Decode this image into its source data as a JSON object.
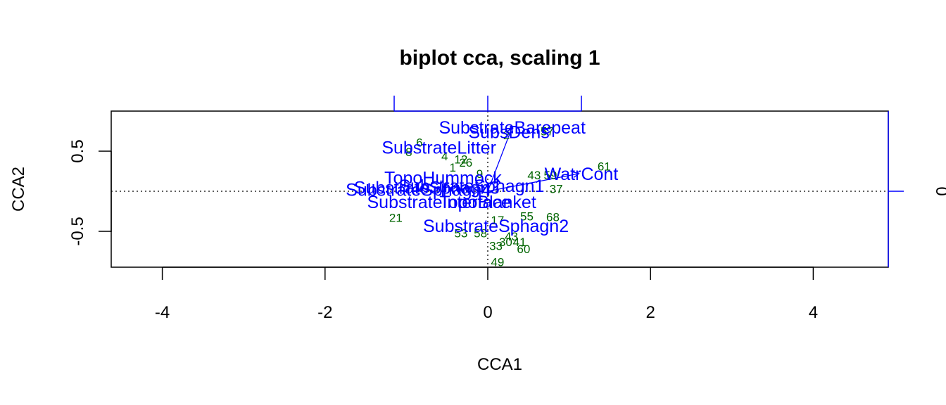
{
  "chart_data": {
    "type": "scatter",
    "title": "biplot cca, scaling 1",
    "xlabel": "CCA1",
    "ylabel": "CCA2",
    "xlim": [
      -4.6,
      4.9
    ],
    "ylim": [
      -0.93,
      1.0
    ],
    "xticks": [
      -4,
      -2,
      0,
      2,
      4
    ],
    "yticks": [
      -0.5,
      0.5
    ],
    "secondary_axis": {
      "tick_label": "0",
      "color": "#0000ff"
    },
    "colors": {
      "sites": "#006400",
      "variables": "#0000ff",
      "axes": "#000000"
    },
    "sites": [
      {
        "label": "57",
        "x": 0.73,
        "y": 0.75
      },
      {
        "label": "2",
        "x": 0.23,
        "y": 0.7
      },
      {
        "label": "8",
        "x": -0.97,
        "y": 0.49
      },
      {
        "label": "6",
        "x": -0.84,
        "y": 0.61
      },
      {
        "label": "4",
        "x": -0.53,
        "y": 0.44
      },
      {
        "label": "12",
        "x": -0.33,
        "y": 0.4
      },
      {
        "label": "26",
        "x": -0.27,
        "y": 0.36
      },
      {
        "label": "1",
        "x": -0.43,
        "y": 0.3
      },
      {
        "label": "9",
        "x": -0.1,
        "y": 0.22
      },
      {
        "label": "43",
        "x": 0.57,
        "y": 0.2
      },
      {
        "label": "59",
        "x": 0.77,
        "y": 0.2
      },
      {
        "label": "61",
        "x": 1.43,
        "y": 0.31
      },
      {
        "label": "37",
        "x": 0.84,
        "y": 0.03
      },
      {
        "label": "21",
        "x": -1.13,
        "y": -0.33
      },
      {
        "label": "17",
        "x": 0.12,
        "y": -0.36
      },
      {
        "label": "55",
        "x": 0.48,
        "y": -0.31
      },
      {
        "label": "68",
        "x": 0.8,
        "y": -0.32
      },
      {
        "label": "53",
        "x": -0.33,
        "y": -0.52
      },
      {
        "label": "58",
        "x": -0.09,
        "y": -0.52
      },
      {
        "label": "43",
        "x": 0.29,
        "y": -0.56
      },
      {
        "label": "30",
        "x": 0.22,
        "y": -0.63
      },
      {
        "label": "41",
        "x": 0.39,
        "y": -0.63
      },
      {
        "label": "33",
        "x": 0.1,
        "y": -0.68
      },
      {
        "label": "60",
        "x": 0.44,
        "y": -0.72
      },
      {
        "label": "49",
        "x": 0.12,
        "y": -0.88
      }
    ],
    "variables": [
      {
        "label": "SubstrateBarepeat",
        "x": 0.3,
        "y": 0.8
      },
      {
        "label": "SubsDens",
        "x": 0.26,
        "y": 0.74
      },
      {
        "label": "SubstrateLitter",
        "x": -0.6,
        "y": 0.55
      },
      {
        "label": "WatrCont",
        "x": 1.15,
        "y": 0.22
      },
      {
        "label": "TopoHummock",
        "x": -0.55,
        "y": 0.17
      },
      {
        "label": "SubstrateSphagn1",
        "x": -0.2,
        "y": 0.07
      },
      {
        "label": "SubstrateSphagn3",
        "x": -0.75,
        "y": 0.05
      },
      {
        "label": "SubstrateSphagn4",
        "x": -0.85,
        "y": 0.02
      },
      {
        "label": "SubstrateInterface",
        "x": -0.6,
        "y": -0.13
      },
      {
        "label": "TopoBlanket",
        "x": 0.0,
        "y": -0.13
      },
      {
        "label": "SubstrateSphagn2",
        "x": 0.1,
        "y": -0.43
      }
    ],
    "arrows": [
      {
        "x": 0.3,
        "y": 0.8
      },
      {
        "x": 1.12,
        "y": 0.22
      }
    ]
  }
}
